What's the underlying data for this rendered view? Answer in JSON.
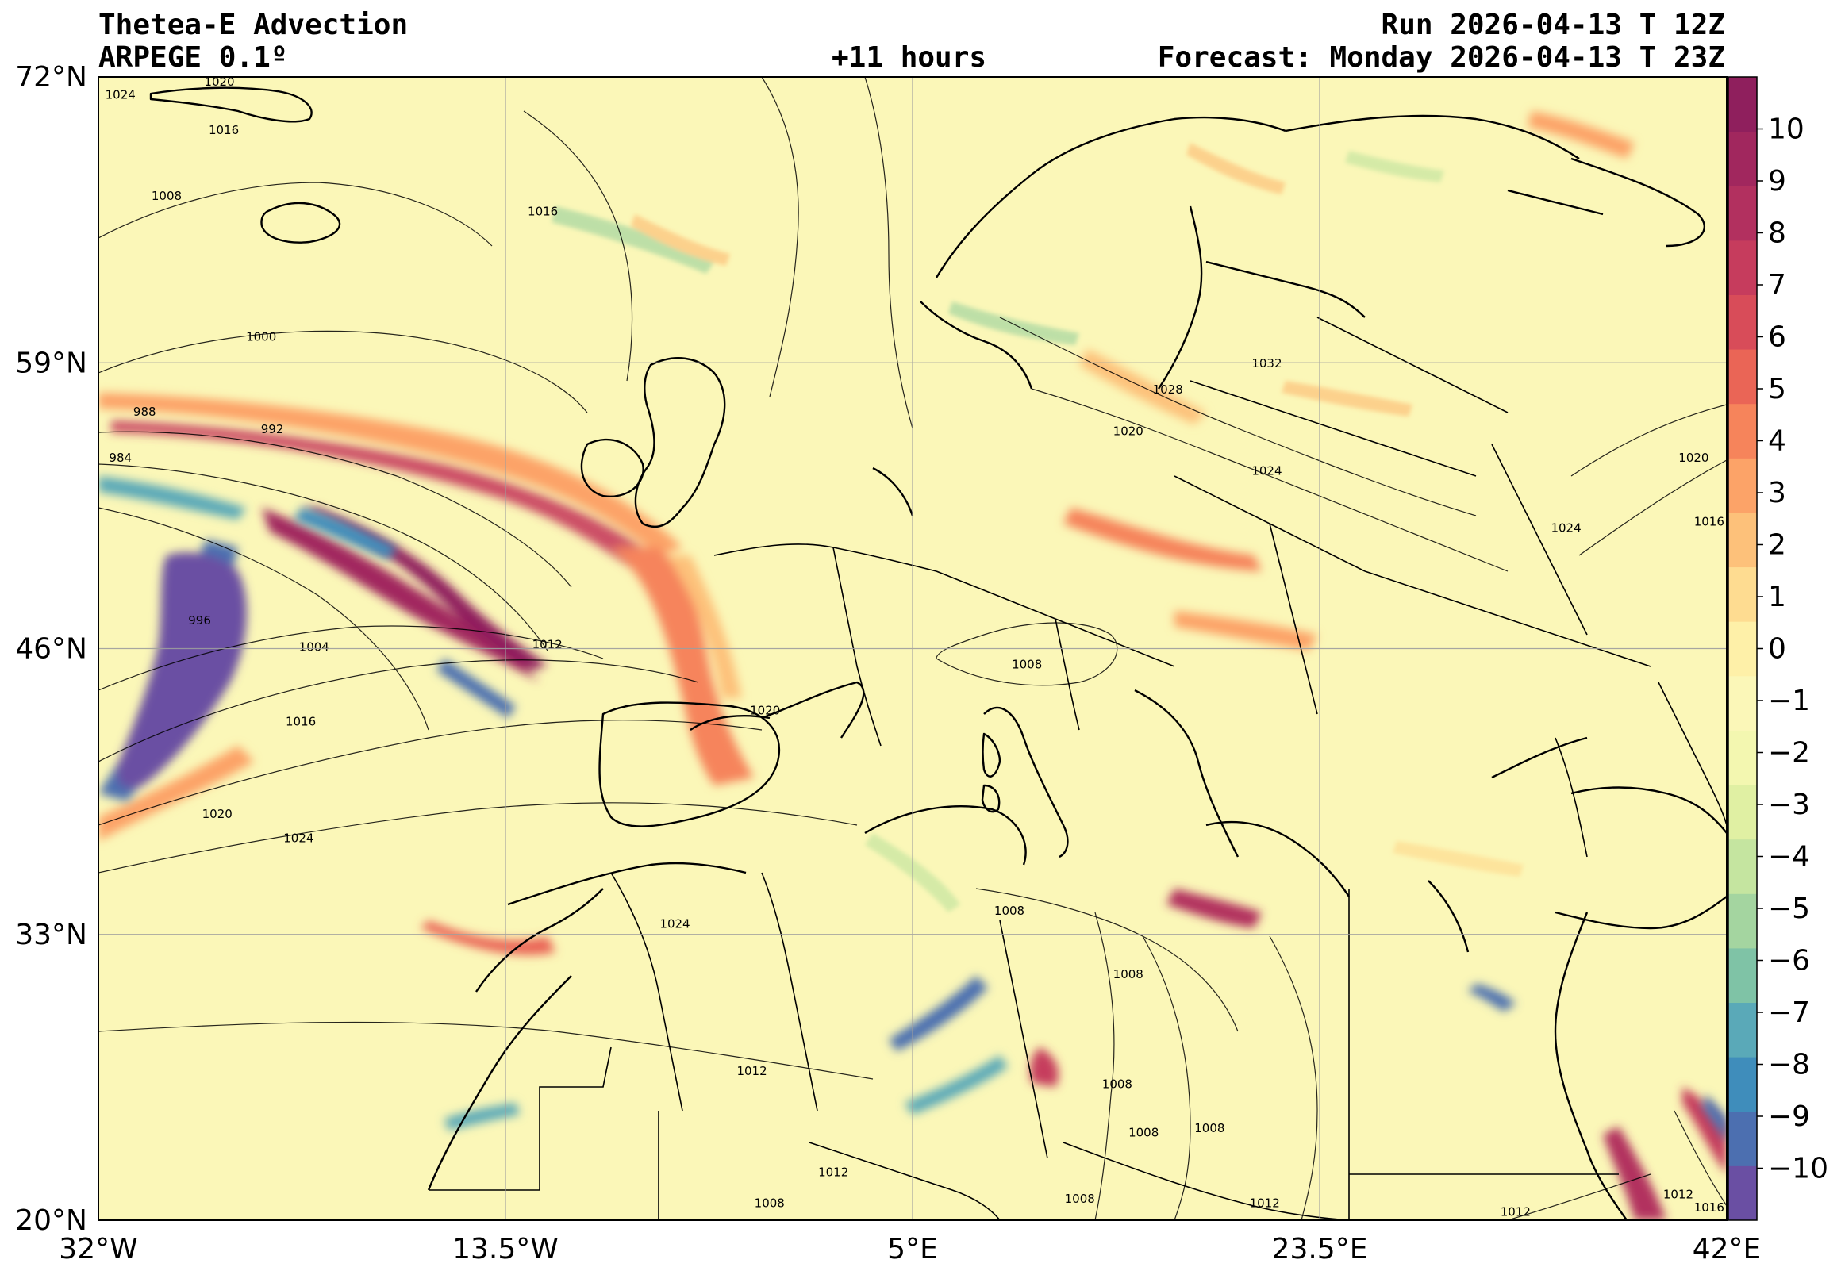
{
  "header": {
    "title_left_1": "Thetea-E Advection",
    "title_left_2": "ARPEGE 0.1º",
    "title_center": "+11 hours",
    "title_right_1": "Run 2026-04-13 T 12Z",
    "title_right_2": "Forecast: Monday 2026-04-13 T 23Z"
  },
  "map": {
    "lon_ticks": [
      "32°W",
      "13.5°W",
      "5°E",
      "23.5°E",
      "42°E"
    ],
    "lat_ticks": [
      "72°N",
      "59°N",
      "46°N",
      "33°N",
      "20°N"
    ],
    "lon_range": [
      -32,
      42
    ],
    "lat_range": [
      20,
      72
    ],
    "gridlines": true,
    "background_color": "#fbf7b8",
    "isobar_labels": [
      {
        "text": "1024",
        "lon": -31.0,
        "lat": 71.0
      },
      {
        "text": "1020",
        "lon": -26.5,
        "lat": 71.6
      },
      {
        "text": "1016",
        "lon": -26.3,
        "lat": 69.4
      },
      {
        "text": "1008",
        "lon": -28.9,
        "lat": 66.4
      },
      {
        "text": "1016",
        "lon": -11.8,
        "lat": 65.7
      },
      {
        "text": "1000",
        "lon": -24.6,
        "lat": 60.0
      },
      {
        "text": "988",
        "lon": -29.9,
        "lat": 56.6
      },
      {
        "text": "992",
        "lon": -24.1,
        "lat": 55.8
      },
      {
        "text": "984",
        "lon": -31.0,
        "lat": 54.5
      },
      {
        "text": "996",
        "lon": -27.4,
        "lat": 47.1
      },
      {
        "text": "1004",
        "lon": -22.2,
        "lat": 45.9
      },
      {
        "text": "1012",
        "lon": -11.6,
        "lat": 46.0
      },
      {
        "text": "1016",
        "lon": -22.8,
        "lat": 42.5
      },
      {
        "text": "1020",
        "lon": -26.6,
        "lat": 38.3
      },
      {
        "text": "1024",
        "lon": -22.9,
        "lat": 37.2
      },
      {
        "text": "1024",
        "lon": -5.8,
        "lat": 33.3
      },
      {
        "text": "1020",
        "lon": -1.7,
        "lat": 43.0
      },
      {
        "text": "1008",
        "lon": 10.2,
        "lat": 45.1
      },
      {
        "text": "1008",
        "lon": 9.4,
        "lat": 33.9
      },
      {
        "text": "1008",
        "lon": 14.8,
        "lat": 31.0
      },
      {
        "text": "1008",
        "lon": 14.3,
        "lat": 26.0
      },
      {
        "text": "1008",
        "lon": 15.5,
        "lat": 23.8
      },
      {
        "text": "1008",
        "lon": 18.5,
        "lat": 24.0
      },
      {
        "text": "1012",
        "lon": -2.3,
        "lat": 26.6
      },
      {
        "text": "1012",
        "lon": 1.4,
        "lat": 22.0
      },
      {
        "text": "1008",
        "lon": -1.5,
        "lat": 20.6
      },
      {
        "text": "1008",
        "lon": 12.6,
        "lat": 20.8
      },
      {
        "text": "1012",
        "lon": 21.0,
        "lat": 20.6
      },
      {
        "text": "1012",
        "lon": 32.4,
        "lat": 20.2
      },
      {
        "text": "1032",
        "lon": 21.1,
        "lat": 58.8
      },
      {
        "text": "1028",
        "lon": 16.6,
        "lat": 57.6
      },
      {
        "text": "1020",
        "lon": 14.8,
        "lat": 55.7
      },
      {
        "text": "1024",
        "lon": 21.1,
        "lat": 53.9
      },
      {
        "text": "1024",
        "lon": 34.7,
        "lat": 51.3
      },
      {
        "text": "1020",
        "lon": 40.5,
        "lat": 54.5
      },
      {
        "text": "1016",
        "lon": 41.2,
        "lat": 51.6
      },
      {
        "text": "1012",
        "lon": 39.8,
        "lat": 21.0
      },
      {
        "text": "1016",
        "lon": 41.2,
        "lat": 20.4
      }
    ]
  },
  "colorbar": {
    "labels": [
      "10",
      "9",
      "8",
      "7",
      "6",
      "5",
      "4",
      "3",
      "2",
      "1",
      "0",
      "−1",
      "−2",
      "−3",
      "−4",
      "−5",
      "−6",
      "−7",
      "−8",
      "−9",
      "−10"
    ],
    "values": [
      10,
      9,
      8,
      7,
      6,
      5,
      4,
      3,
      2,
      1,
      0,
      -1,
      -2,
      -3,
      -4,
      -5,
      -6,
      -7,
      -8,
      -9,
      -10
    ],
    "range": [
      -11,
      11
    ],
    "colors": [
      "#6a4fa3",
      "#4c6fb0",
      "#3f8dbb",
      "#5aa9b8",
      "#7fc3a6",
      "#a4d5a0",
      "#c5e5a0",
      "#e0f0a3",
      "#f3f7b0",
      "#fbf7b8",
      "#fef0a8",
      "#fedc91",
      "#fdc17a",
      "#fca368",
      "#f6845b",
      "#ea6556",
      "#d84c59",
      "#c63c5d",
      "#b2305f",
      "#a1275e",
      "#8f1f5d"
    ]
  }
}
